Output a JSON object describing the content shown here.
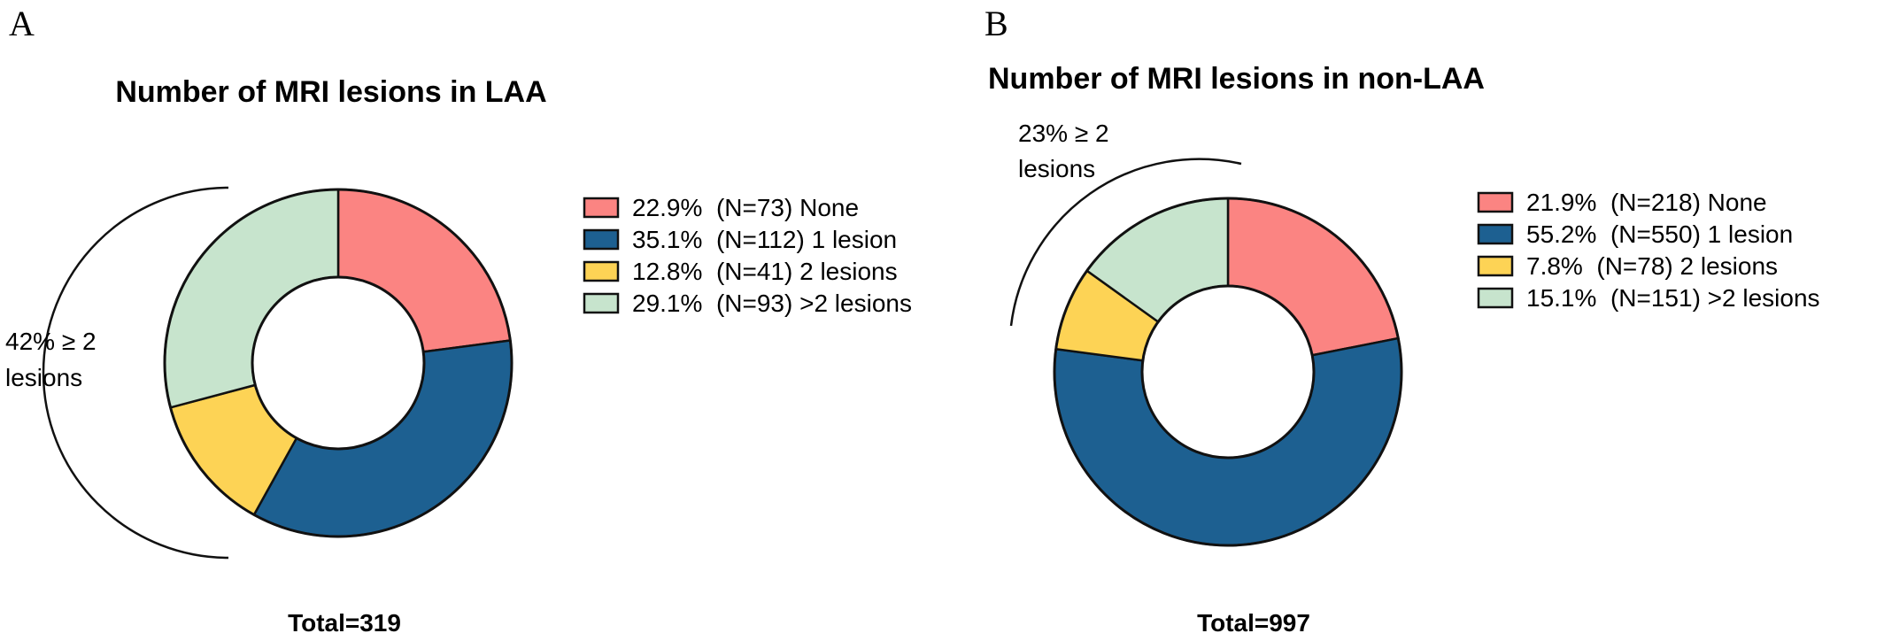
{
  "chart_data": [
    {
      "type": "pie",
      "panel_label": "A",
      "title": "Number of MRI lesions in LAA",
      "total_label": "Total=319",
      "total": 319,
      "slices": [
        {
          "label": "None",
          "percent": 22.9,
          "n": 73,
          "color": "#fb8482",
          "legend": "22.9%  (N=73) None"
        },
        {
          "label": "1 lesion",
          "percent": 35.1,
          "n": 112,
          "color": "#1d6091",
          "legend": "35.1%  (N=112) 1 lesion"
        },
        {
          "label": "2 lesions",
          "percent": 12.8,
          "n": 41,
          "color": "#fdd355",
          "legend": "12.8%  (N=41) 2 lesions"
        },
        {
          "label": ">2 lesions",
          "percent": 29.1,
          "n": 93,
          "color": "#c7e4cd",
          "legend": "29.1%  (N=93) >2 lesions"
        }
      ],
      "annotation": {
        "line1": "42% ≥ 2",
        "line2": "lesions",
        "value_percent": 42
      }
    },
    {
      "type": "pie",
      "panel_label": "B",
      "title": "Number of MRI lesions in non-LAA",
      "total_label": "Total=997",
      "total": 997,
      "slices": [
        {
          "label": "None",
          "percent": 21.9,
          "n": 218,
          "color": "#fb8482",
          "legend": "21.9%  (N=218) None"
        },
        {
          "label": "1 lesion",
          "percent": 55.2,
          "n": 550,
          "color": "#1d6091",
          "legend": "55.2%  (N=550) 1 lesion"
        },
        {
          "label": "2 lesions",
          "percent": 7.8,
          "n": 78,
          "color": "#fdd355",
          "legend": "7.8%  (N=78) 2 lesions"
        },
        {
          "label": ">2 lesions",
          "percent": 15.1,
          "n": 151,
          "color": "#c7e4cd",
          "legend": "15.1%  (N=151) >2 lesions"
        }
      ],
      "annotation": {
        "line1": "23% ≥ 2",
        "line2": "lesions",
        "value_percent": 23
      }
    }
  ]
}
